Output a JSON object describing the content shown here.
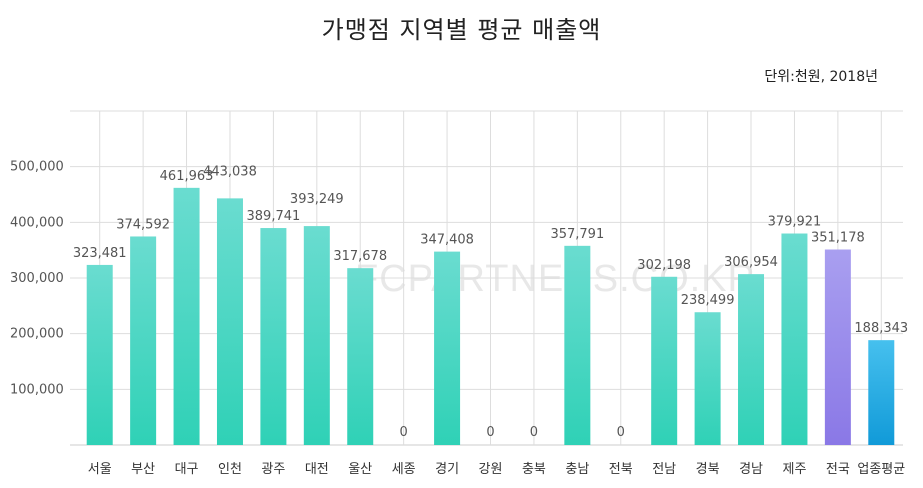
{
  "chart_data": {
    "type": "bar",
    "title": "가맹점 지역별 평균 매출액",
    "unit_note": "단위:천원, 2018년",
    "watermark": "FCPARTNERS.CO.KR",
    "categories": [
      "서울",
      "부산",
      "대구",
      "인천",
      "광주",
      "대전",
      "울산",
      "세종",
      "경기",
      "강원",
      "충북",
      "충남",
      "전북",
      "전남",
      "경북",
      "경남",
      "제주",
      "전국",
      "업종평균"
    ],
    "values": [
      323481,
      374592,
      461963,
      443038,
      389741,
      393249,
      317678,
      0,
      347408,
      0,
      0,
      357791,
      0,
      302198,
      238499,
      306954,
      379921,
      351178,
      188343
    ],
    "value_labels": [
      "323,481",
      "374,592",
      "461,963",
      "443,038",
      "389,741",
      "393,249",
      "317,678",
      "0",
      "347,408",
      "0",
      "0",
      "357,791",
      "0",
      "302,198",
      "238,499",
      "306,954",
      "379,921",
      "351,178",
      "188,343"
    ],
    "ylim": [
      0,
      600000
    ],
    "yticks": [
      100000,
      200000,
      300000,
      400000,
      500000
    ],
    "ytick_labels": [
      "100,000",
      "200,000",
      "300,000",
      "400,000",
      "500,000"
    ],
    "grid": true,
    "colors": {
      "regional_top": "#6adcd0",
      "regional_bottom": "#2fd1b6",
      "national_top": "#a99ff0",
      "national_bottom": "#8a78e6",
      "average_top": "#46c0ee",
      "average_bottom": "#119ad8",
      "grid": "#dddddd",
      "axis": "#cccccc",
      "text": "#555555"
    }
  }
}
